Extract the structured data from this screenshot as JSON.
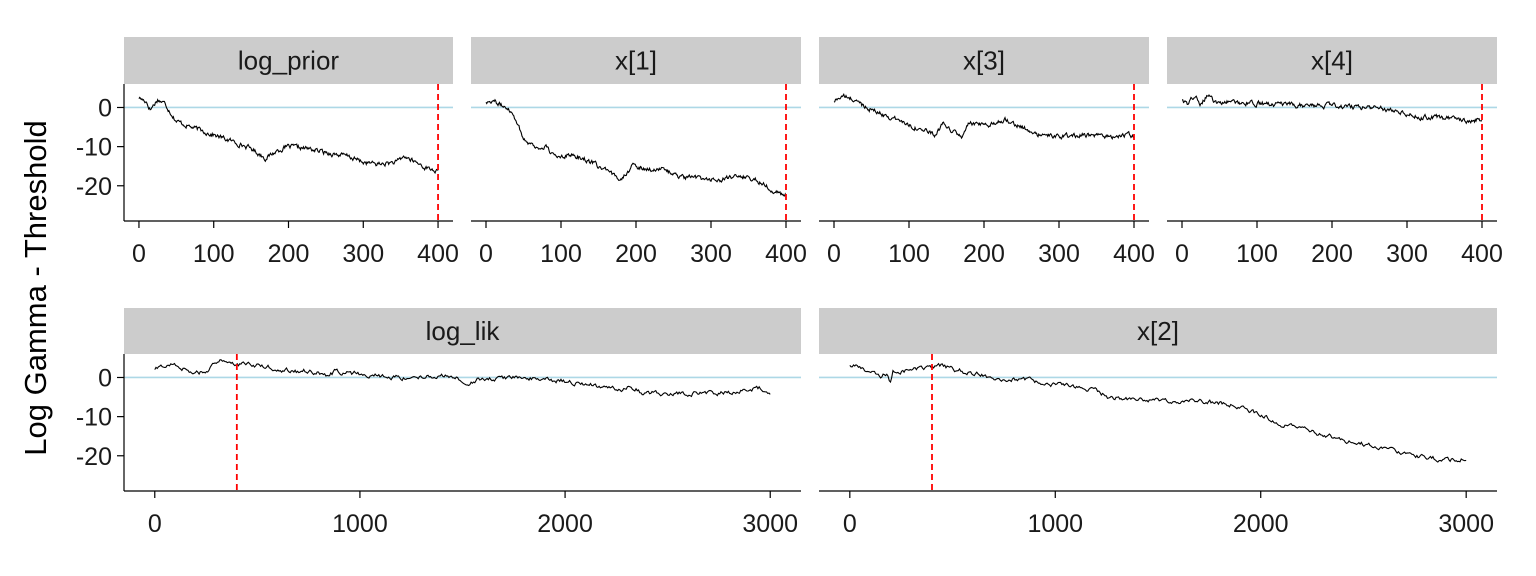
{
  "chart_data": {
    "type": "line",
    "title": "",
    "xlabel": "",
    "ylabel": "Log Gamma - Threshold",
    "grid": false,
    "legend": "none",
    "colors": {
      "trace": "#000000",
      "threshold_line": "#add8e6",
      "cutoff_line": "#ff0000",
      "strip": "#cccccc",
      "axis": "#000000"
    },
    "ylim": [
      -29,
      6
    ],
    "y_ticks": [
      0,
      -10,
      -20
    ],
    "panels": [
      {
        "name": "log_prior",
        "xlim": [
          -20,
          420
        ],
        "x_ticks": [
          0,
          100,
          200,
          300,
          400
        ],
        "cutoff_x": 400,
        "threshold_y": 0,
        "n_points": 400,
        "anchors": [
          [
            0,
            2.5
          ],
          [
            10,
            1.5
          ],
          [
            15,
            -0.5
          ],
          [
            25,
            2
          ],
          [
            35,
            1
          ],
          [
            45,
            -2
          ],
          [
            50,
            -3.5
          ],
          [
            70,
            -5
          ],
          [
            100,
            -7
          ],
          [
            130,
            -9
          ],
          [
            150,
            -10.5
          ],
          [
            170,
            -13
          ],
          [
            185,
            -11
          ],
          [
            200,
            -10
          ],
          [
            225,
            -10.5
          ],
          [
            250,
            -11.5
          ],
          [
            280,
            -12.5
          ],
          [
            300,
            -14
          ],
          [
            320,
            -14.5
          ],
          [
            345,
            -14
          ],
          [
            355,
            -12.5
          ],
          [
            370,
            -14
          ],
          [
            385,
            -15.5
          ],
          [
            395,
            -16
          ],
          [
            400,
            -16.5
          ]
        ]
      },
      {
        "name": "x[1]",
        "xlim": [
          -20,
          420
        ],
        "x_ticks": [
          0,
          100,
          200,
          300,
          400
        ],
        "cutoff_x": 400,
        "threshold_y": 0,
        "n_points": 400,
        "anchors": [
          [
            0,
            1.5
          ],
          [
            10,
            1.8
          ],
          [
            20,
            0.5
          ],
          [
            30,
            0
          ],
          [
            40,
            -3
          ],
          [
            50,
            -8
          ],
          [
            70,
            -10.5
          ],
          [
            80,
            -10
          ],
          [
            90,
            -12.5
          ],
          [
            110,
            -12
          ],
          [
            130,
            -13
          ],
          [
            150,
            -15
          ],
          [
            170,
            -17.5
          ],
          [
            180,
            -18
          ],
          [
            195,
            -15
          ],
          [
            210,
            -15.5
          ],
          [
            240,
            -16
          ],
          [
            260,
            -18
          ],
          [
            280,
            -18
          ],
          [
            310,
            -18.5
          ],
          [
            330,
            -18
          ],
          [
            340,
            -17.5
          ],
          [
            360,
            -18.5
          ],
          [
            375,
            -20
          ],
          [
            390,
            -22
          ],
          [
            400,
            -22.5
          ]
        ]
      },
      {
        "name": "x[3]",
        "xlim": [
          -20,
          420
        ],
        "x_ticks": [
          0,
          100,
          200,
          300,
          400
        ],
        "cutoff_x": 400,
        "threshold_y": 0,
        "n_points": 400,
        "anchors": [
          [
            0,
            1.5
          ],
          [
            10,
            3
          ],
          [
            25,
            2
          ],
          [
            45,
            0
          ],
          [
            55,
            -1
          ],
          [
            135,
            -7
          ],
          [
            145,
            -4.5
          ],
          [
            170,
            -7.5
          ],
          [
            180,
            -4
          ],
          [
            205,
            -5
          ],
          [
            210,
            -4
          ],
          [
            230,
            -3
          ],
          [
            250,
            -5
          ],
          [
            270,
            -7
          ],
          [
            300,
            -7.5
          ],
          [
            330,
            -7
          ],
          [
            360,
            -7.5
          ],
          [
            390,
            -7
          ],
          [
            400,
            -7.5
          ]
        ]
      },
      {
        "name": "x[4]",
        "xlim": [
          -20,
          420
        ],
        "x_ticks": [
          0,
          100,
          200,
          300,
          400
        ],
        "cutoff_x": 400,
        "threshold_y": 0,
        "n_points": 400,
        "anchors": [
          [
            0,
            2
          ],
          [
            8,
            0.5
          ],
          [
            12,
            2.5
          ],
          [
            20,
            2
          ],
          [
            25,
            1
          ],
          [
            35,
            3.5
          ],
          [
            45,
            1
          ],
          [
            55,
            1.5
          ],
          [
            100,
            1
          ],
          [
            150,
            0.5
          ],
          [
            200,
            0.5
          ],
          [
            250,
            0
          ],
          [
            280,
            -0.5
          ],
          [
            300,
            -1.5
          ],
          [
            320,
            -2.5
          ],
          [
            340,
            -2.5
          ],
          [
            360,
            -3
          ],
          [
            380,
            -3.5
          ],
          [
            395,
            -3
          ],
          [
            400,
            -3
          ]
        ]
      },
      {
        "name": "log_lik",
        "xlim": [
          -150,
          3150
        ],
        "x_ticks": [
          0,
          1000,
          2000,
          3000
        ],
        "cutoff_x": 400,
        "threshold_y": 0,
        "n_points": 3000,
        "anchors": [
          [
            0,
            2
          ],
          [
            50,
            3
          ],
          [
            100,
            3.5
          ],
          [
            150,
            2
          ],
          [
            200,
            1
          ],
          [
            260,
            2
          ],
          [
            300,
            3.5
          ],
          [
            330,
            4.5
          ],
          [
            400,
            3.5
          ],
          [
            500,
            3
          ],
          [
            700,
            1.5
          ],
          [
            720,
            2
          ],
          [
            850,
            0.5
          ],
          [
            880,
            1.5
          ],
          [
            960,
            1
          ],
          [
            970,
            2
          ],
          [
            1000,
            1
          ],
          [
            1200,
            0
          ],
          [
            1400,
            0.5
          ],
          [
            1560,
            -1.5
          ],
          [
            1580,
            -0.5
          ],
          [
            1700,
            0
          ],
          [
            1900,
            -0.5
          ],
          [
            2000,
            -1
          ],
          [
            2200,
            -2.5
          ],
          [
            2280,
            -3
          ],
          [
            2310,
            -2
          ],
          [
            2380,
            -4
          ],
          [
            2500,
            -4
          ],
          [
            2600,
            -4
          ],
          [
            2800,
            -4
          ],
          [
            2900,
            -3
          ],
          [
            2950,
            -2.5
          ],
          [
            3000,
            -4.5
          ]
        ]
      },
      {
        "name": "x[2]",
        "xlim": [
          -150,
          3150
        ],
        "x_ticks": [
          0,
          1000,
          2000,
          3000
        ],
        "cutoff_x": 400,
        "threshold_y": 0,
        "n_points": 3000,
        "anchors": [
          [
            0,
            3
          ],
          [
            50,
            2.5
          ],
          [
            100,
            1.5
          ],
          [
            150,
            0
          ],
          [
            180,
            1
          ],
          [
            200,
            -1.5
          ],
          [
            210,
            1.5
          ],
          [
            300,
            2
          ],
          [
            400,
            2.5
          ],
          [
            450,
            3
          ],
          [
            500,
            2
          ],
          [
            700,
            0
          ],
          [
            900,
            -1
          ],
          [
            1100,
            -2.5
          ],
          [
            1200,
            -3.5
          ],
          [
            1280,
            -5.5
          ],
          [
            1300,
            -5
          ],
          [
            1400,
            -5.5
          ],
          [
            1500,
            -6
          ],
          [
            1600,
            -6
          ],
          [
            1700,
            -6
          ],
          [
            1800,
            -6.5
          ],
          [
            1900,
            -7.5
          ],
          [
            2000,
            -9.5
          ],
          [
            2100,
            -12
          ],
          [
            2200,
            -13
          ],
          [
            2300,
            -14.5
          ],
          [
            2400,
            -16
          ],
          [
            2500,
            -17
          ],
          [
            2600,
            -18
          ],
          [
            2700,
            -19
          ],
          [
            2800,
            -20.5
          ],
          [
            2900,
            -21
          ],
          [
            3000,
            -21
          ]
        ]
      }
    ]
  }
}
